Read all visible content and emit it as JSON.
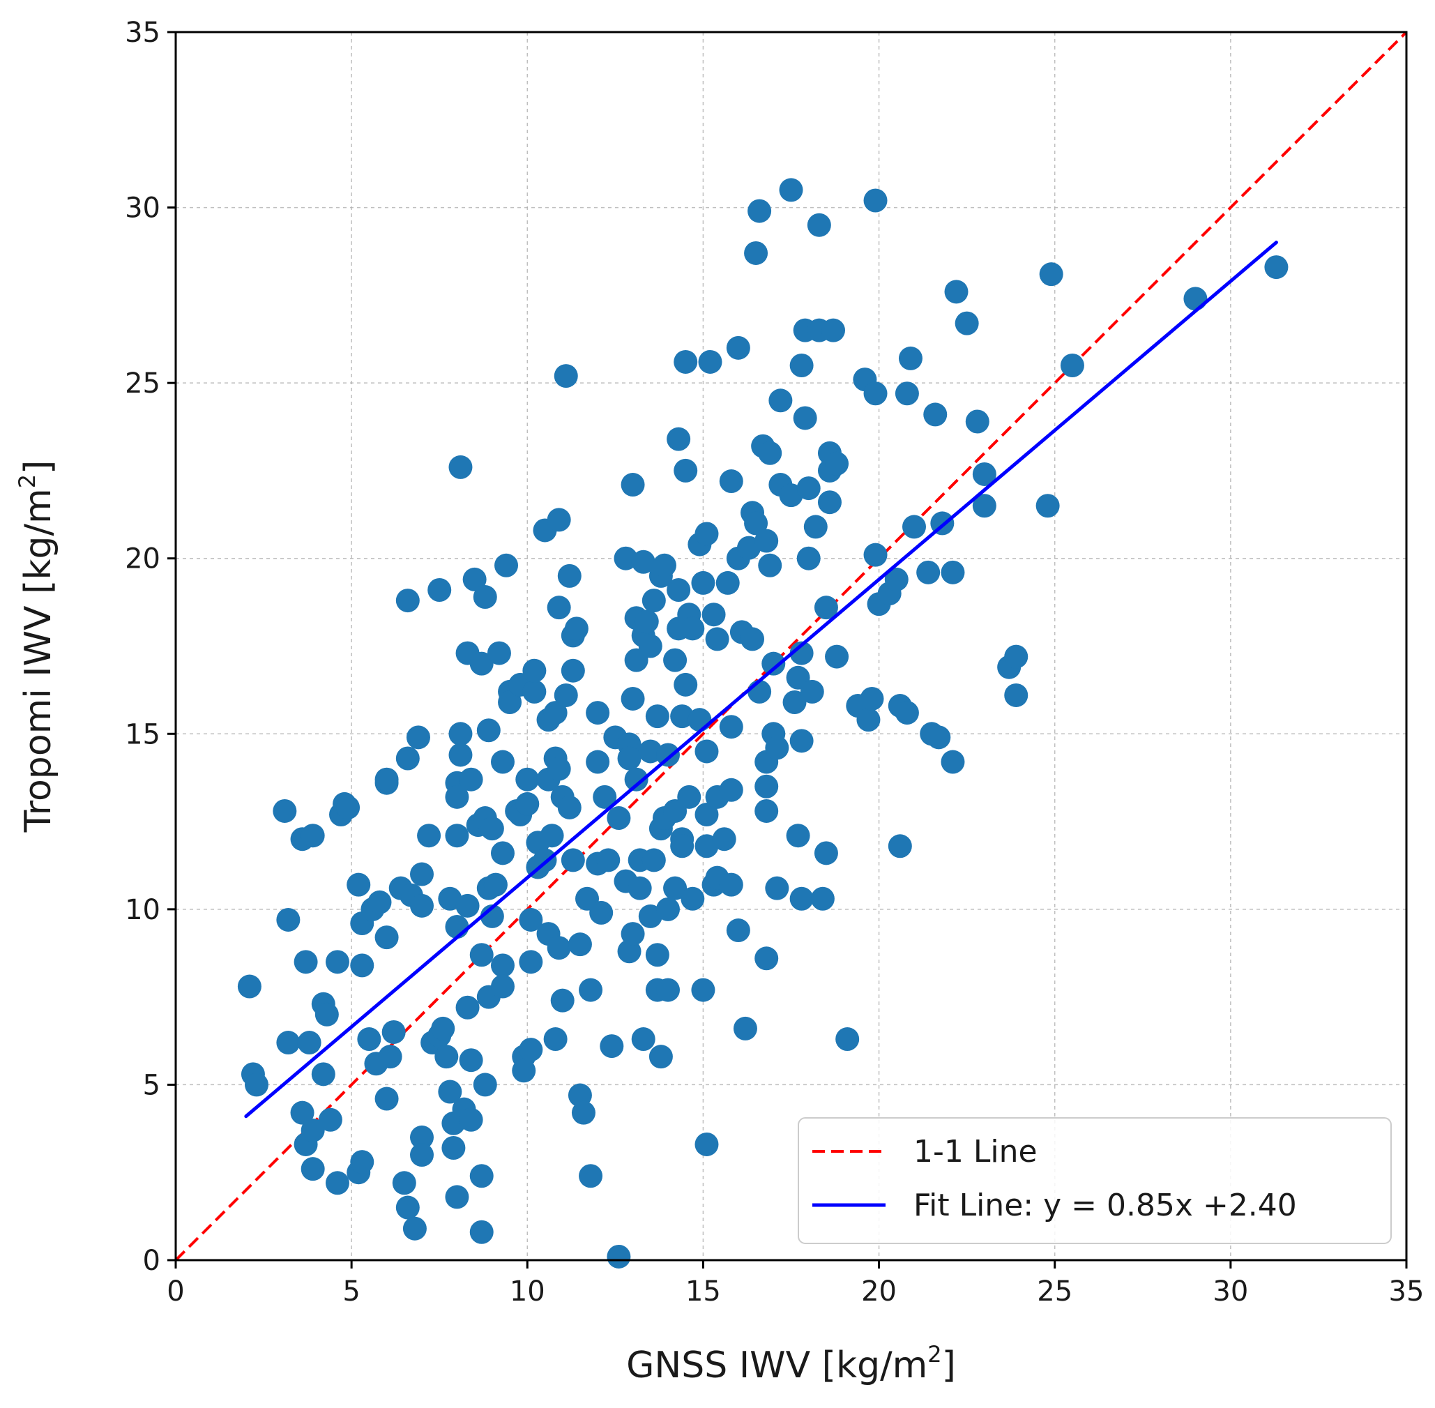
{
  "chart_data": {
    "type": "scatter",
    "xlabel": "GNSS IWV [kg/m",
    "ylabel": "Tropomi IWV [kg/m",
    "unit_superscript": "2",
    "axis_label_close": "]",
    "xlim": [
      0,
      35
    ],
    "ylim": [
      0,
      35
    ],
    "xticks": [
      "0",
      "5",
      "10",
      "15",
      "20",
      "25",
      "30",
      "35"
    ],
    "yticks": [
      "0",
      "5",
      "10",
      "15",
      "20",
      "25",
      "30",
      "35"
    ],
    "grid": true,
    "legend_position": "lower-right",
    "colors": {
      "points": "#1f77b4",
      "one_to_one": "#ff0000",
      "fit": "#0000ff"
    },
    "one_to_one": {
      "label": "1-1 Line",
      "x": [
        0,
        35
      ],
      "y": [
        0,
        35
      ]
    },
    "fit_line": {
      "label": "Fit Line: y = 0.85x +2.40",
      "slope": 0.85,
      "intercept": 2.4,
      "x_range": [
        2.0,
        31.3
      ]
    },
    "series": [
      {
        "name": "observations",
        "points": [
          [
            2.1,
            7.8
          ],
          [
            2.2,
            5.3
          ],
          [
            2.3,
            5.0
          ],
          [
            3.1,
            12.8
          ],
          [
            3.2,
            9.7
          ],
          [
            3.2,
            6.2
          ],
          [
            3.6,
            12.0
          ],
          [
            3.7,
            8.5
          ],
          [
            3.8,
            6.2
          ],
          [
            3.6,
            4.2
          ],
          [
            3.7,
            3.3
          ],
          [
            3.9,
            2.6
          ],
          [
            3.9,
            12.1
          ],
          [
            3.9,
            3.7
          ],
          [
            4.2,
            7.3
          ],
          [
            4.3,
            7.0
          ],
          [
            4.4,
            4.0
          ],
          [
            4.2,
            5.3
          ],
          [
            4.6,
            8.5
          ],
          [
            4.6,
            2.2
          ],
          [
            4.7,
            12.7
          ],
          [
            4.8,
            13.0
          ],
          [
            4.9,
            12.9
          ],
          [
            5.2,
            10.7
          ],
          [
            5.2,
            2.5
          ],
          [
            5.3,
            2.8
          ],
          [
            5.3,
            9.6
          ],
          [
            5.3,
            8.4
          ],
          [
            5.5,
            6.3
          ],
          [
            5.6,
            10.0
          ],
          [
            5.7,
            5.6
          ],
          [
            5.8,
            10.2
          ],
          [
            6.0,
            9.2
          ],
          [
            6.0,
            13.6
          ],
          [
            6.0,
            13.7
          ],
          [
            6.0,
            4.6
          ],
          [
            6.2,
            6.5
          ],
          [
            6.1,
            5.8
          ],
          [
            6.4,
            10.6
          ],
          [
            6.5,
            2.2
          ],
          [
            6.6,
            18.8
          ],
          [
            6.6,
            1.5
          ],
          [
            6.6,
            14.3
          ],
          [
            6.7,
            10.4
          ],
          [
            6.8,
            0.9
          ],
          [
            6.9,
            14.9
          ],
          [
            7.0,
            11.0
          ],
          [
            7.0,
            10.1
          ],
          [
            7.0,
            3.5
          ],
          [
            7.0,
            3.0
          ],
          [
            7.2,
            12.1
          ],
          [
            7.5,
            19.1
          ],
          [
            7.3,
            6.2
          ],
          [
            7.5,
            6.4
          ],
          [
            7.6,
            6.6
          ],
          [
            7.7,
            5.8
          ],
          [
            7.8,
            10.3
          ],
          [
            7.8,
            4.8
          ],
          [
            7.9,
            3.2
          ],
          [
            7.9,
            3.9
          ],
          [
            8.0,
            9.5
          ],
          [
            8.0,
            13.6
          ],
          [
            8.0,
            13.2
          ],
          [
            8.0,
            12.1
          ],
          [
            8.0,
            1.8
          ],
          [
            8.1,
            15.0
          ],
          [
            8.1,
            14.4
          ],
          [
            8.1,
            22.6
          ],
          [
            8.2,
            4.3
          ],
          [
            8.3,
            17.3
          ],
          [
            8.3,
            10.1
          ],
          [
            8.3,
            7.2
          ],
          [
            8.4,
            13.7
          ],
          [
            8.4,
            5.7
          ],
          [
            8.4,
            4.0
          ],
          [
            8.5,
            19.4
          ],
          [
            8.6,
            12.4
          ],
          [
            8.7,
            17.0
          ],
          [
            8.7,
            8.7
          ],
          [
            8.7,
            2.4
          ],
          [
            8.7,
            0.8
          ],
          [
            8.8,
            18.9
          ],
          [
            8.8,
            12.6
          ],
          [
            8.8,
            5.0
          ],
          [
            8.9,
            15.1
          ],
          [
            8.9,
            10.6
          ],
          [
            8.9,
            7.5
          ],
          [
            9.0,
            12.3
          ],
          [
            9.0,
            9.8
          ],
          [
            9.1,
            10.7
          ],
          [
            9.2,
            17.3
          ],
          [
            9.3,
            14.2
          ],
          [
            9.3,
            11.6
          ],
          [
            9.3,
            8.4
          ],
          [
            9.3,
            7.8
          ],
          [
            9.4,
            19.8
          ],
          [
            9.5,
            16.2
          ],
          [
            9.5,
            15.9
          ],
          [
            9.7,
            12.8
          ],
          [
            9.8,
            16.4
          ],
          [
            9.8,
            12.7
          ],
          [
            9.9,
            5.8
          ],
          [
            9.9,
            5.4
          ],
          [
            10.0,
            13.7
          ],
          [
            10.0,
            13.0
          ],
          [
            10.1,
            9.7
          ],
          [
            10.1,
            8.5
          ],
          [
            10.1,
            6.0
          ],
          [
            10.2,
            16.2
          ],
          [
            10.2,
            16.8
          ],
          [
            10.3,
            11.9
          ],
          [
            10.3,
            11.2
          ],
          [
            10.5,
            20.8
          ],
          [
            10.5,
            11.4
          ],
          [
            10.6,
            15.4
          ],
          [
            10.6,
            13.7
          ],
          [
            10.6,
            9.3
          ],
          [
            10.7,
            12.1
          ],
          [
            10.8,
            15.6
          ],
          [
            10.8,
            14.3
          ],
          [
            10.8,
            6.3
          ],
          [
            10.9,
            21.1
          ],
          [
            10.9,
            18.6
          ],
          [
            10.9,
            14.0
          ],
          [
            10.9,
            8.9
          ],
          [
            11.0,
            13.2
          ],
          [
            11.0,
            7.4
          ],
          [
            11.1,
            25.2
          ],
          [
            11.1,
            16.1
          ],
          [
            11.2,
            19.5
          ],
          [
            11.2,
            12.9
          ],
          [
            11.3,
            16.8
          ],
          [
            11.3,
            17.8
          ],
          [
            11.3,
            11.4
          ],
          [
            11.4,
            18.0
          ],
          [
            11.5,
            9.0
          ],
          [
            11.5,
            4.7
          ],
          [
            11.6,
            4.2
          ],
          [
            11.7,
            10.3
          ],
          [
            11.8,
            7.7
          ],
          [
            11.8,
            2.4
          ],
          [
            12.0,
            15.6
          ],
          [
            12.0,
            14.2
          ],
          [
            12.0,
            11.3
          ],
          [
            12.1,
            9.9
          ],
          [
            12.2,
            13.2
          ],
          [
            12.3,
            11.4
          ],
          [
            12.4,
            6.1
          ],
          [
            12.5,
            14.9
          ],
          [
            12.6,
            12.6
          ],
          [
            12.6,
            0.1
          ],
          [
            12.8,
            20.0
          ],
          [
            12.8,
            10.8
          ],
          [
            12.9,
            14.7
          ],
          [
            12.9,
            14.3
          ],
          [
            12.9,
            8.8
          ],
          [
            13.0,
            22.1
          ],
          [
            13.0,
            16.0
          ],
          [
            13.0,
            9.3
          ],
          [
            13.1,
            18.3
          ],
          [
            13.1,
            17.1
          ],
          [
            13.1,
            13.7
          ],
          [
            13.2,
            11.4
          ],
          [
            13.2,
            10.6
          ],
          [
            13.3,
            19.9
          ],
          [
            13.3,
            17.8
          ],
          [
            13.3,
            6.3
          ],
          [
            13.4,
            18.2
          ],
          [
            13.5,
            17.5
          ],
          [
            13.5,
            14.5
          ],
          [
            13.5,
            9.8
          ],
          [
            13.6,
            18.8
          ],
          [
            13.6,
            11.4
          ],
          [
            13.7,
            15.5
          ],
          [
            13.7,
            8.7
          ],
          [
            13.7,
            7.7
          ],
          [
            13.8,
            19.5
          ],
          [
            13.8,
            12.3
          ],
          [
            13.8,
            5.8
          ],
          [
            13.9,
            19.8
          ],
          [
            13.9,
            12.6
          ],
          [
            14.0,
            14.4
          ],
          [
            14.0,
            10.0
          ],
          [
            14.0,
            7.7
          ],
          [
            14.2,
            17.1
          ],
          [
            14.2,
            12.8
          ],
          [
            14.2,
            10.6
          ],
          [
            14.3,
            23.4
          ],
          [
            14.3,
            19.1
          ],
          [
            14.3,
            18.0
          ],
          [
            14.4,
            15.5
          ],
          [
            14.4,
            12.0
          ],
          [
            14.4,
            11.8
          ],
          [
            14.5,
            25.6
          ],
          [
            14.5,
            22.5
          ],
          [
            14.5,
            16.4
          ],
          [
            14.6,
            18.4
          ],
          [
            14.6,
            13.2
          ],
          [
            14.7,
            18.0
          ],
          [
            14.7,
            10.3
          ],
          [
            14.9,
            20.4
          ],
          [
            14.9,
            15.4
          ],
          [
            15.0,
            19.3
          ],
          [
            15.0,
            7.7
          ],
          [
            15.1,
            20.7
          ],
          [
            15.1,
            14.5
          ],
          [
            15.1,
            12.7
          ],
          [
            15.1,
            11.8
          ],
          [
            15.1,
            3.3
          ],
          [
            15.2,
            25.6
          ],
          [
            15.3,
            18.4
          ],
          [
            15.3,
            10.7
          ],
          [
            15.4,
            17.7
          ],
          [
            15.4,
            13.2
          ],
          [
            15.4,
            10.9
          ],
          [
            15.6,
            12.0
          ],
          [
            15.7,
            19.3
          ],
          [
            15.8,
            22.2
          ],
          [
            15.8,
            15.2
          ],
          [
            15.8,
            13.4
          ],
          [
            15.8,
            10.7
          ],
          [
            16.0,
            26.0
          ],
          [
            16.0,
            20.0
          ],
          [
            16.0,
            9.4
          ],
          [
            16.1,
            17.9
          ],
          [
            16.2,
            6.6
          ],
          [
            16.3,
            20.3
          ],
          [
            16.4,
            17.7
          ],
          [
            16.4,
            21.3
          ],
          [
            16.5,
            28.7
          ],
          [
            16.5,
            21.0
          ],
          [
            16.6,
            29.9
          ],
          [
            16.6,
            16.2
          ],
          [
            16.7,
            23.2
          ],
          [
            16.8,
            20.5
          ],
          [
            16.8,
            14.2
          ],
          [
            16.8,
            13.5
          ],
          [
            16.8,
            12.8
          ],
          [
            16.8,
            8.6
          ],
          [
            16.9,
            23.0
          ],
          [
            16.9,
            19.8
          ],
          [
            17.0,
            17.0
          ],
          [
            17.0,
            15.0
          ],
          [
            17.1,
            14.6
          ],
          [
            17.1,
            10.6
          ],
          [
            17.2,
            24.5
          ],
          [
            17.2,
            22.1
          ],
          [
            17.5,
            30.5
          ],
          [
            17.5,
            21.8
          ],
          [
            17.6,
            15.9
          ],
          [
            17.7,
            16.6
          ],
          [
            17.7,
            12.1
          ],
          [
            17.8,
            25.5
          ],
          [
            17.8,
            17.3
          ],
          [
            17.8,
            14.8
          ],
          [
            17.8,
            10.3
          ],
          [
            17.9,
            26.5
          ],
          [
            17.9,
            24.0
          ],
          [
            18.0,
            22.0
          ],
          [
            18.0,
            20.0
          ],
          [
            18.1,
            16.2
          ],
          [
            18.2,
            20.9
          ],
          [
            18.3,
            29.5
          ],
          [
            18.3,
            26.5
          ],
          [
            18.4,
            10.3
          ],
          [
            18.5,
            18.6
          ],
          [
            18.5,
            11.6
          ],
          [
            18.6,
            23.0
          ],
          [
            18.6,
            21.6
          ],
          [
            18.6,
            22.5
          ],
          [
            18.7,
            26.5
          ],
          [
            18.8,
            22.7
          ],
          [
            18.8,
            17.2
          ],
          [
            19.1,
            6.3
          ],
          [
            19.4,
            15.8
          ],
          [
            19.6,
            25.1
          ],
          [
            19.7,
            15.4
          ],
          [
            19.8,
            16.0
          ],
          [
            19.9,
            30.2
          ],
          [
            19.9,
            24.7
          ],
          [
            19.9,
            20.1
          ],
          [
            20.0,
            18.7
          ],
          [
            20.3,
            19.0
          ],
          [
            20.5,
            19.4
          ],
          [
            20.6,
            11.8
          ],
          [
            20.6,
            15.8
          ],
          [
            20.8,
            24.7
          ],
          [
            20.8,
            15.6
          ],
          [
            20.9,
            25.7
          ],
          [
            21.0,
            20.9
          ],
          [
            21.4,
            19.6
          ],
          [
            21.5,
            15.0
          ],
          [
            21.6,
            24.1
          ],
          [
            21.7,
            14.9
          ],
          [
            21.8,
            21.0
          ],
          [
            22.1,
            19.6
          ],
          [
            22.1,
            14.2
          ],
          [
            22.2,
            27.6
          ],
          [
            22.5,
            26.7
          ],
          [
            22.8,
            23.9
          ],
          [
            23.0,
            22.4
          ],
          [
            23.0,
            21.5
          ],
          [
            23.7,
            16.9
          ],
          [
            23.9,
            17.2
          ],
          [
            23.9,
            16.1
          ],
          [
            24.8,
            21.5
          ],
          [
            24.9,
            28.1
          ],
          [
            25.5,
            25.5
          ],
          [
            29.0,
            27.4
          ],
          [
            31.3,
            28.3
          ]
        ]
      }
    ]
  }
}
